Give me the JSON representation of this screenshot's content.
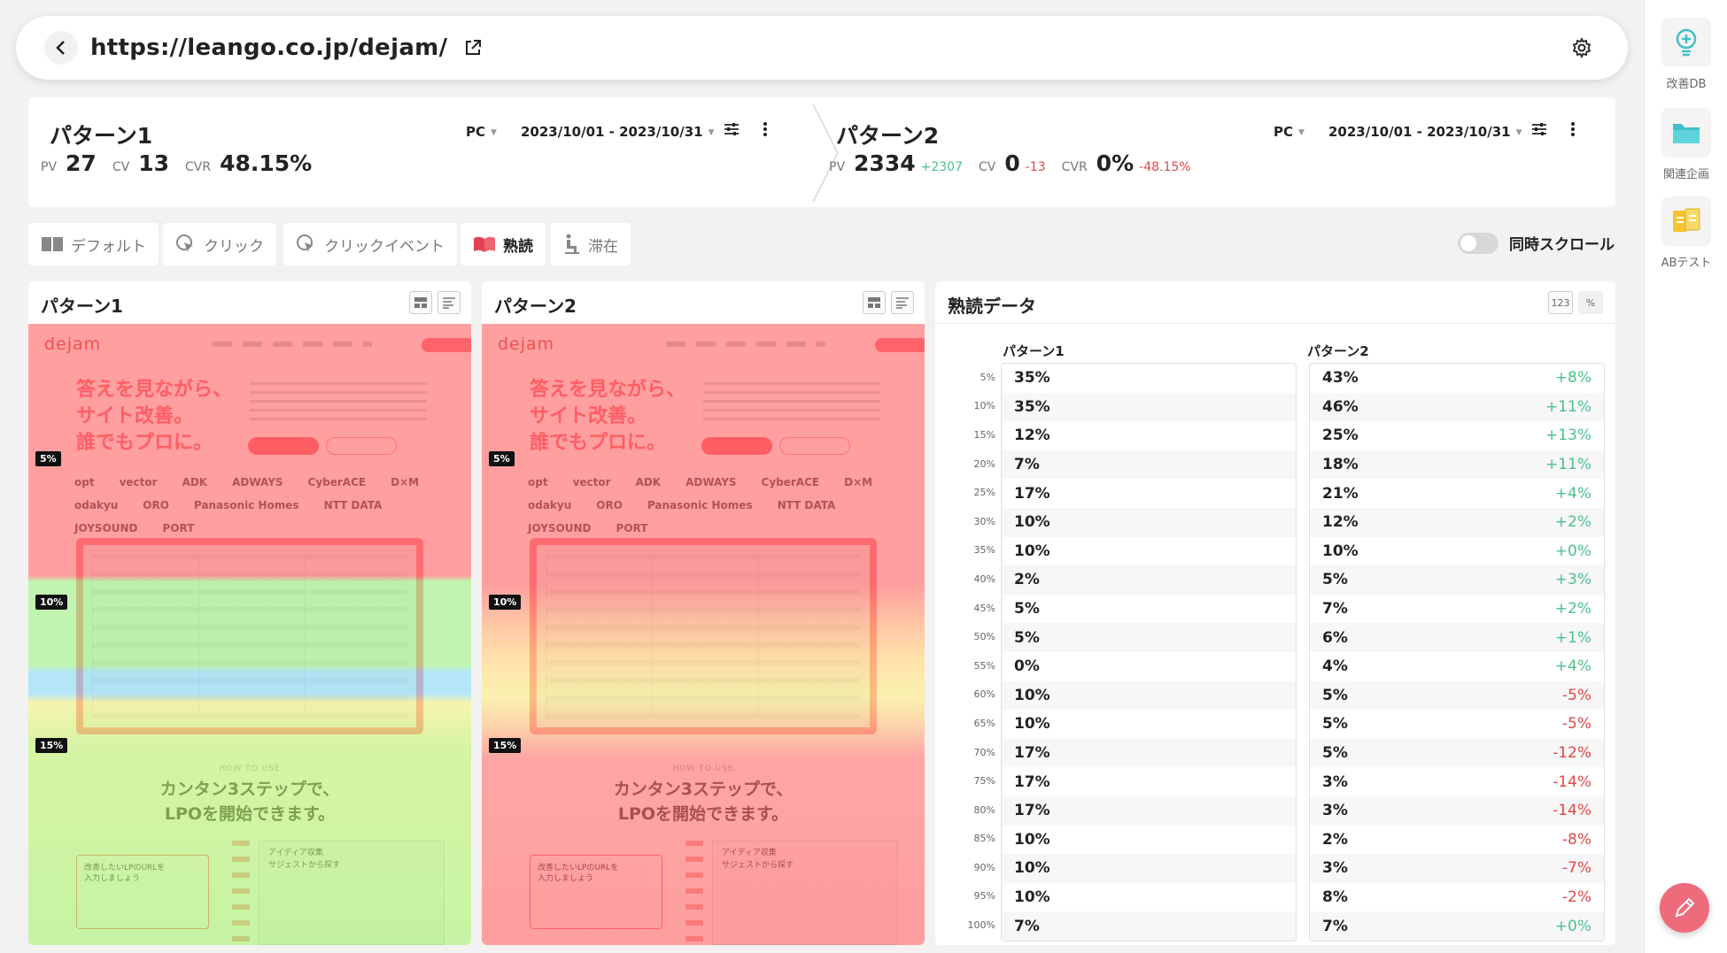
{
  "url": "https://leango.co.jp/dejam/",
  "rail": [
    {
      "label": "改善DB",
      "icon": "lightbulb-icon"
    },
    {
      "label": "関連企画",
      "icon": "folder-icon"
    },
    {
      "label": "ABテスト",
      "icon": "ab-test-icon"
    }
  ],
  "patterns": [
    {
      "title": "パターン1",
      "pv_label": "PV",
      "pv": "27",
      "pv_delta": "",
      "cv_label": "CV",
      "cv": "13",
      "cv_delta": "",
      "cvr_label": "CVR",
      "cvr": "48.15%",
      "cvr_delta": "",
      "device": "PC",
      "date_range": "2023/10/01 - 2023/10/31"
    },
    {
      "title": "パターン2",
      "pv_label": "PV",
      "pv": "2334",
      "pv_delta": "+2307",
      "cv_label": "CV",
      "cv": "0",
      "cv_delta": "-13",
      "cvr_label": "CVR",
      "cvr": "0%",
      "cvr_delta": "-48.15%",
      "device": "PC",
      "date_range": "2023/10/01 - 2023/10/31"
    }
  ],
  "toolbar": {
    "default": "デフォルト",
    "click": "クリック",
    "click_event": "クリックイベント",
    "reading": "熟読",
    "stay": "滞在",
    "sync_scroll": "同時スクロール"
  },
  "heatmap_panels": [
    {
      "title": "パターン1"
    },
    {
      "title": "パターン2"
    }
  ],
  "lp": {
    "logo": "dejam",
    "hero": "答えを見ながら、\nサイト改善。\n誰でもプロに。",
    "logos": [
      "opt",
      "vector",
      "ADK",
      "ADWAYS",
      "CyberACE",
      "D×M",
      "odakyu",
      "ORO",
      "Panasonic Homes",
      "NTT DATA",
      "JOYSOUND",
      "PORT"
    ],
    "howto": "HOW TO USE",
    "steps": "カンタン3ステップで、\nLPOを開始できます。",
    "step1": "改善したいLPのURLを\n入力しましょう",
    "step2_title": "アイディア収集",
    "step2_sub": "サジェストから探す"
  },
  "badges": [
    "5%",
    "10%",
    "15%"
  ],
  "reading_data": {
    "title": "熟読データ",
    "btn_number": "123",
    "btn_percent": "%",
    "col1": "パターン1",
    "col2": "パターン2",
    "depths": [
      "5%",
      "10%",
      "15%",
      "20%",
      "25%",
      "30%",
      "35%",
      "40%",
      "45%",
      "50%",
      "55%",
      "60%",
      "65%",
      "70%",
      "75%",
      "80%",
      "85%",
      "90%",
      "95%",
      "100%"
    ],
    "pattern1": [
      "35%",
      "35%",
      "12%",
      "7%",
      "17%",
      "10%",
      "10%",
      "2%",
      "5%",
      "5%",
      "0%",
      "10%",
      "10%",
      "17%",
      "17%",
      "17%",
      "10%",
      "10%",
      "10%",
      "7%"
    ],
    "pattern2": [
      "43%",
      "46%",
      "25%",
      "18%",
      "21%",
      "12%",
      "10%",
      "5%",
      "7%",
      "6%",
      "4%",
      "5%",
      "5%",
      "5%",
      "3%",
      "3%",
      "2%",
      "3%",
      "8%",
      "7%"
    ],
    "diff": [
      "+8%",
      "+11%",
      "+13%",
      "+11%",
      "+4%",
      "+2%",
      "+0%",
      "+3%",
      "+2%",
      "+1%",
      "+4%",
      "-5%",
      "-5%",
      "-12%",
      "-14%",
      "-14%",
      "-8%",
      "-7%",
      "-2%",
      "+0%"
    ]
  },
  "colors": {
    "positive": "#4cc08a",
    "negative": "#e04848",
    "accent": "#ee6b7c"
  }
}
